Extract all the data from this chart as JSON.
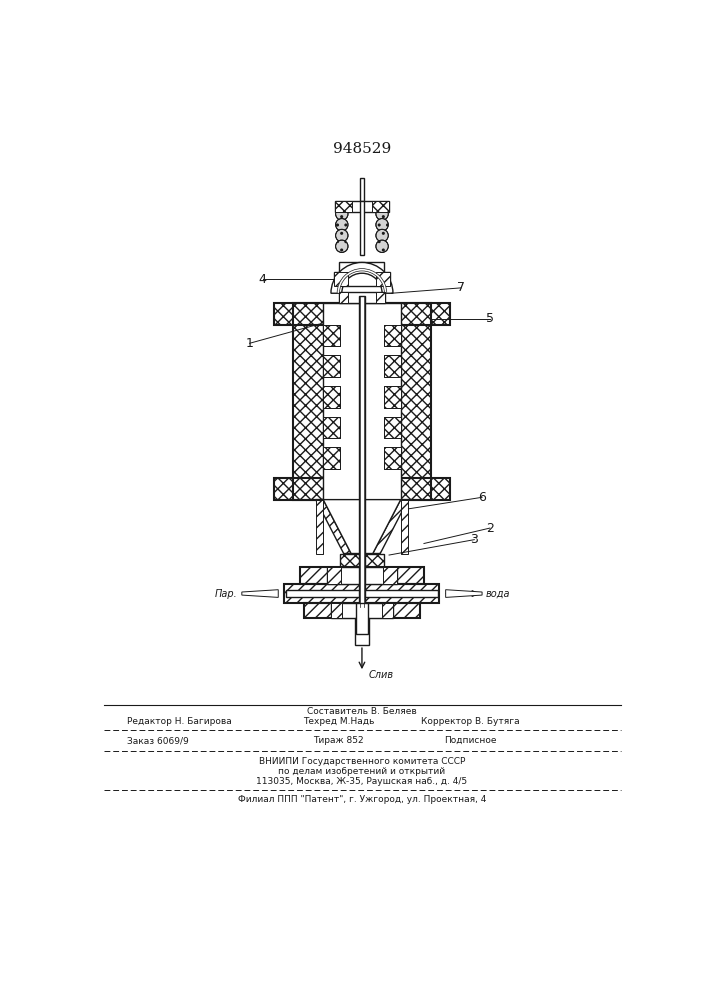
{
  "patent_number": "948529",
  "background_color": "#ffffff",
  "line_color": "#1a1a1a",
  "footer_sestavitel": "Составитель В. Беляев",
  "footer_redaktor": "Редактор Н. Багирова",
  "footer_tehred": "Техред М.Надь",
  "footer_korrektor": "Корректор В. Бутяга",
  "footer_zakaz": "Заказ 6069/9",
  "footer_tirazh": "Тираж 852",
  "footer_podpisnoe": "Подписное",
  "footer_vniip": "ВНИИПИ Государственного комитета СССР",
  "footer_po": "по делам изобретений и открытий",
  "footer_addr": "113035, Москва, Ж-35, Раушская наб., д. 4/5",
  "footer_filial": "Филиал ППП \"Патент\", г. Ужгород, ул. Проектная, 4",
  "par_label": "Пар.",
  "voda_label": "вода",
  "sliv_label": "Слив"
}
